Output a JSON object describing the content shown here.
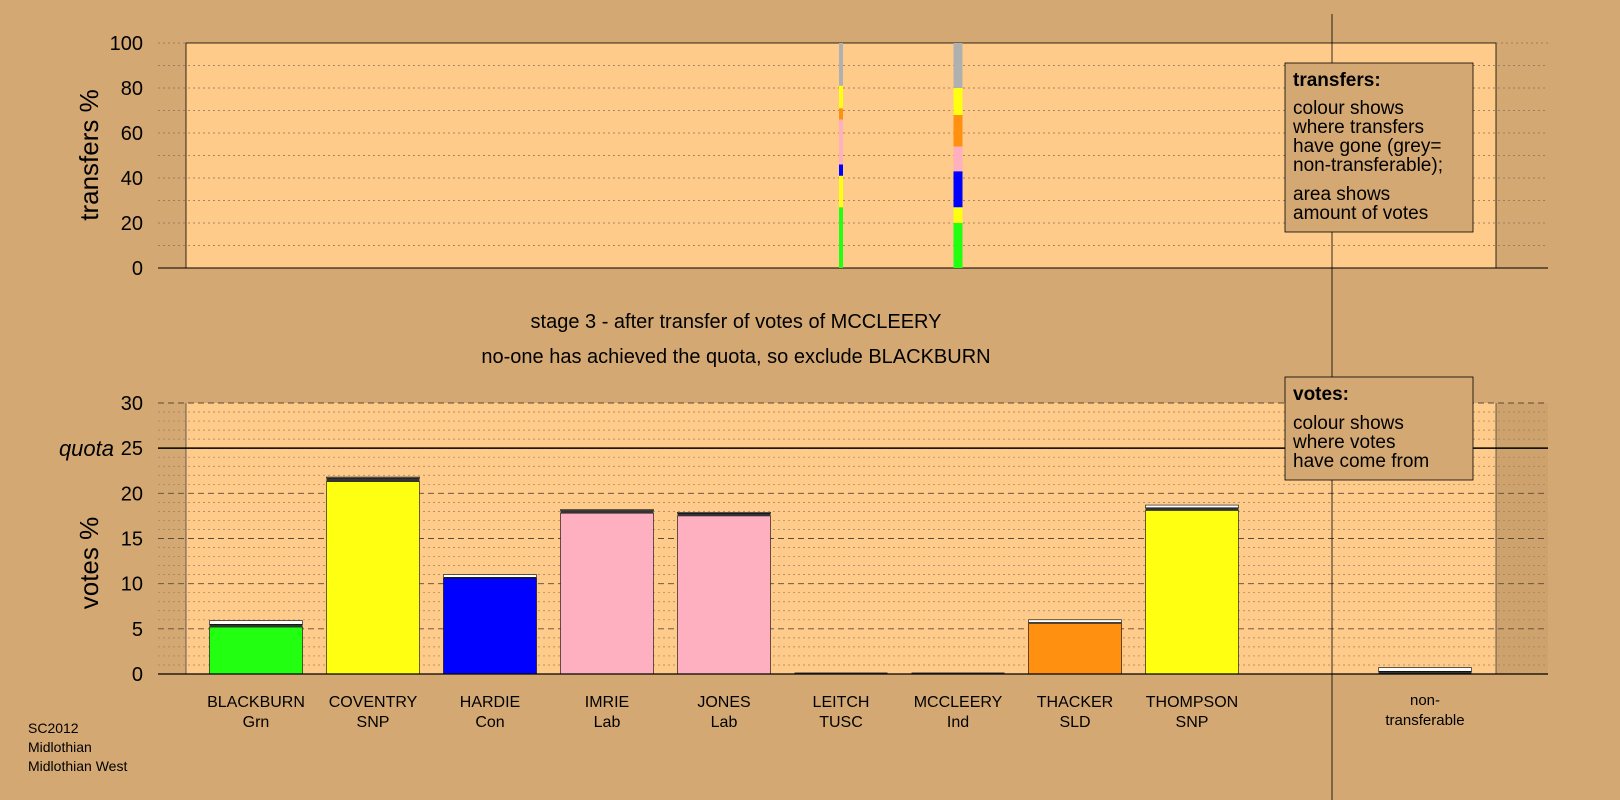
{
  "colors": {
    "background": "#D4A872",
    "plot_bg": "#FECB8A",
    "green": "#22FF11",
    "yellow": "#FFFF11",
    "blue": "#0000FF",
    "pink": "#FFB0C0",
    "orange": "#FF9010",
    "grey": "#B0B0B0",
    "dark": "#333333"
  },
  "top_chart": {
    "ylabel": "transfers %",
    "yticks": [
      "0",
      "20",
      "40",
      "60",
      "80",
      "100"
    ],
    "legend": {
      "title": "transfers:",
      "lines1": [
        "colour shows",
        "where transfers",
        "have gone (grey=",
        "non-transferable);"
      ],
      "lines2": [
        "area shows",
        "amount of votes"
      ]
    }
  },
  "stage_text": {
    "line1": "stage 3 - after transfer of votes of MCCLEERY",
    "line2": "no-one has achieved the quota, so exclude BLACKBURN"
  },
  "bottom_chart": {
    "ylabel": "votes %",
    "quota_label": "quota",
    "yticks": [
      "0",
      "5",
      "10",
      "15",
      "20",
      "25",
      "30"
    ],
    "legend": {
      "title": "votes:",
      "lines": [
        "colour shows",
        "where votes",
        "have come from"
      ]
    }
  },
  "chart_data": [
    {
      "type": "bar",
      "title": "",
      "ylabel": "transfers %",
      "ylim": [
        0,
        100
      ],
      "grid": true,
      "transfers": [
        {
          "from": "LEITCH",
          "segments": [
            {
              "to": "BLACKBURN",
              "color": "green",
              "value": 27
            },
            {
              "to": "COVENTRY",
              "color": "yellow",
              "value": 14
            },
            {
              "to": "HARDIE",
              "color": "blue",
              "value": 5
            },
            {
              "to": "IMRIE",
              "color": "pink",
              "value": 20
            },
            {
              "to": "THACKER",
              "color": "orange",
              "value": 5
            },
            {
              "to": "THOMPSON",
              "color": "yellow",
              "value": 10
            },
            {
              "to": "non-transferable",
              "color": "grey",
              "value": 19
            }
          ]
        },
        {
          "from": "MCCLEERY",
          "segments": [
            {
              "to": "BLACKBURN",
              "color": "green",
              "value": 20
            },
            {
              "to": "COVENTRY",
              "color": "yellow",
              "value": 7
            },
            {
              "to": "HARDIE",
              "color": "blue",
              "value": 16
            },
            {
              "to": "IMRIE",
              "color": "pink",
              "value": 11
            },
            {
              "to": "THACKER",
              "color": "orange",
              "value": 14
            },
            {
              "to": "THOMPSON",
              "color": "yellow",
              "value": 12
            },
            {
              "to": "non-transferable",
              "color": "grey",
              "value": 20
            }
          ]
        }
      ]
    },
    {
      "type": "bar",
      "title": "",
      "ylabel": "votes %",
      "ylim": [
        0,
        30
      ],
      "quota": 25,
      "grid": true,
      "bars": [
        {
          "name": "BLACKBURN",
          "party": "Grn",
          "color": "green",
          "base": 5.2,
          "stage1": 0.3,
          "stage2": 0.4
        },
        {
          "name": "COVENTRY",
          "party": "SNP",
          "color": "yellow",
          "base": 21.3,
          "stage1": 0.4,
          "stage2": 0.1
        },
        {
          "name": "HARDIE",
          "party": "Con",
          "color": "blue",
          "base": 10.6,
          "stage1": 0.1,
          "stage2": 0.3
        },
        {
          "name": "IMRIE",
          "party": "Lab",
          "color": "pink",
          "base": 17.8,
          "stage1": 0.3,
          "stage2": 0.1
        },
        {
          "name": "JONES",
          "party": "Lab",
          "color": "pink",
          "base": 17.5,
          "stage1": 0.3,
          "stage2": 0.1
        },
        {
          "name": "LEITCH",
          "party": "TUSC",
          "color": "grey",
          "base": 0,
          "stage1": 0,
          "stage2": 0
        },
        {
          "name": "MCCLEERY",
          "party": "Ind",
          "color": "grey",
          "base": 0,
          "stage1": 0,
          "stage2": 0
        },
        {
          "name": "THACKER",
          "party": "SLD",
          "color": "orange",
          "base": 5.6,
          "stage1": 0.1,
          "stage2": 0.3
        },
        {
          "name": "THOMPSON",
          "party": "SNP",
          "color": "yellow",
          "base": 18.1,
          "stage1": 0.3,
          "stage2": 0.3
        }
      ],
      "nontransferable": {
        "label1": "non-",
        "label2": "transferable",
        "stage1": 0.3,
        "stage2": 0.4
      }
    }
  ],
  "footer": {
    "lines": [
      "SC2012",
      "Midlothian",
      "Midlothian West"
    ]
  }
}
